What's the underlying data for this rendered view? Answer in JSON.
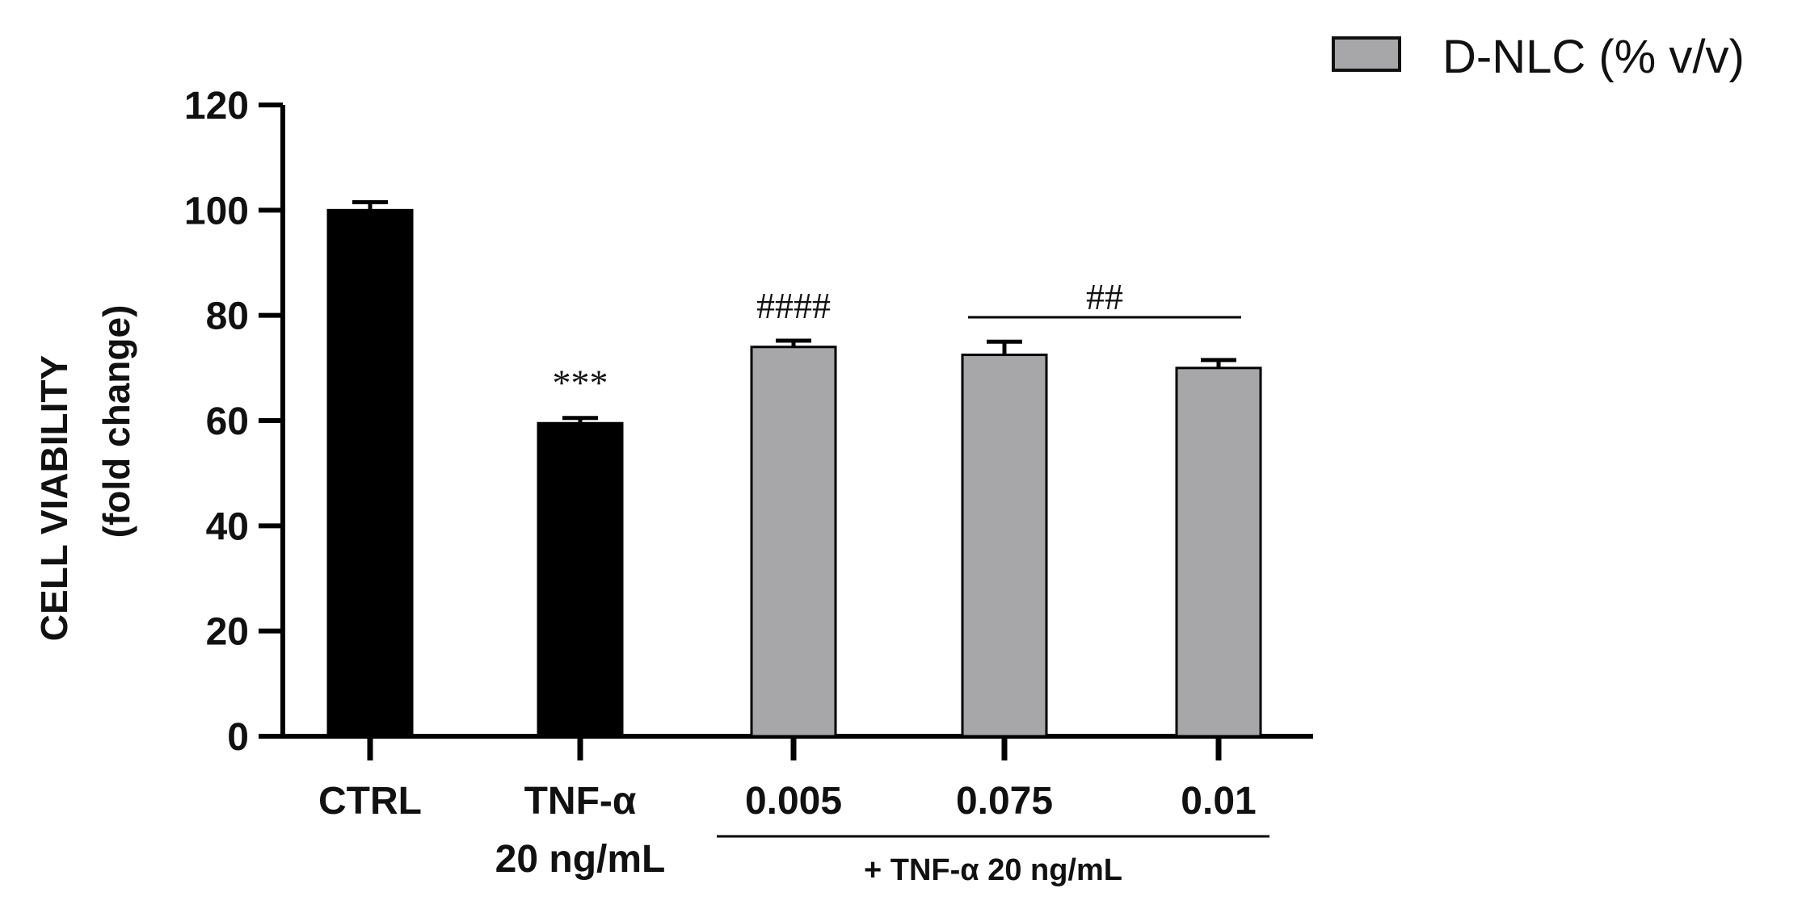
{
  "chart_data": {
    "type": "bar",
    "categories": [
      "CTRL",
      "TNF-α",
      "0.005",
      "0.075",
      "0.01"
    ],
    "category_sublabels": [
      "",
      "20 ng/mL",
      "",
      "",
      ""
    ],
    "values": [
      100,
      59.5,
      74,
      72.5,
      70
    ],
    "errors": [
      1.5,
      1.0,
      1.2,
      2.5,
      1.5
    ],
    "bar_colors": [
      "#000000",
      "#000000",
      "#a7a7aa",
      "#a7a7aa",
      "#a7a7aa"
    ],
    "ylabel_line1": "CELL VIABILITY",
    "ylabel_line2": "(fold change)",
    "ylim": [
      0,
      120
    ],
    "yticks": [
      0,
      20,
      40,
      60,
      80,
      100,
      120
    ],
    "grid": false,
    "legend": {
      "label": "D-NLC (% v/v)",
      "color": "#a7a7aa",
      "placement": "top-right"
    },
    "annotations": [
      {
        "text": "***",
        "category_index": 1
      },
      {
        "text": "####",
        "category_index": 2
      },
      {
        "text": "##",
        "from_index": 3,
        "to_index": 4
      }
    ],
    "group_label": {
      "text": "+ TNF-α 20 ng/mL",
      "from_index": 2,
      "to_index": 4
    }
  }
}
